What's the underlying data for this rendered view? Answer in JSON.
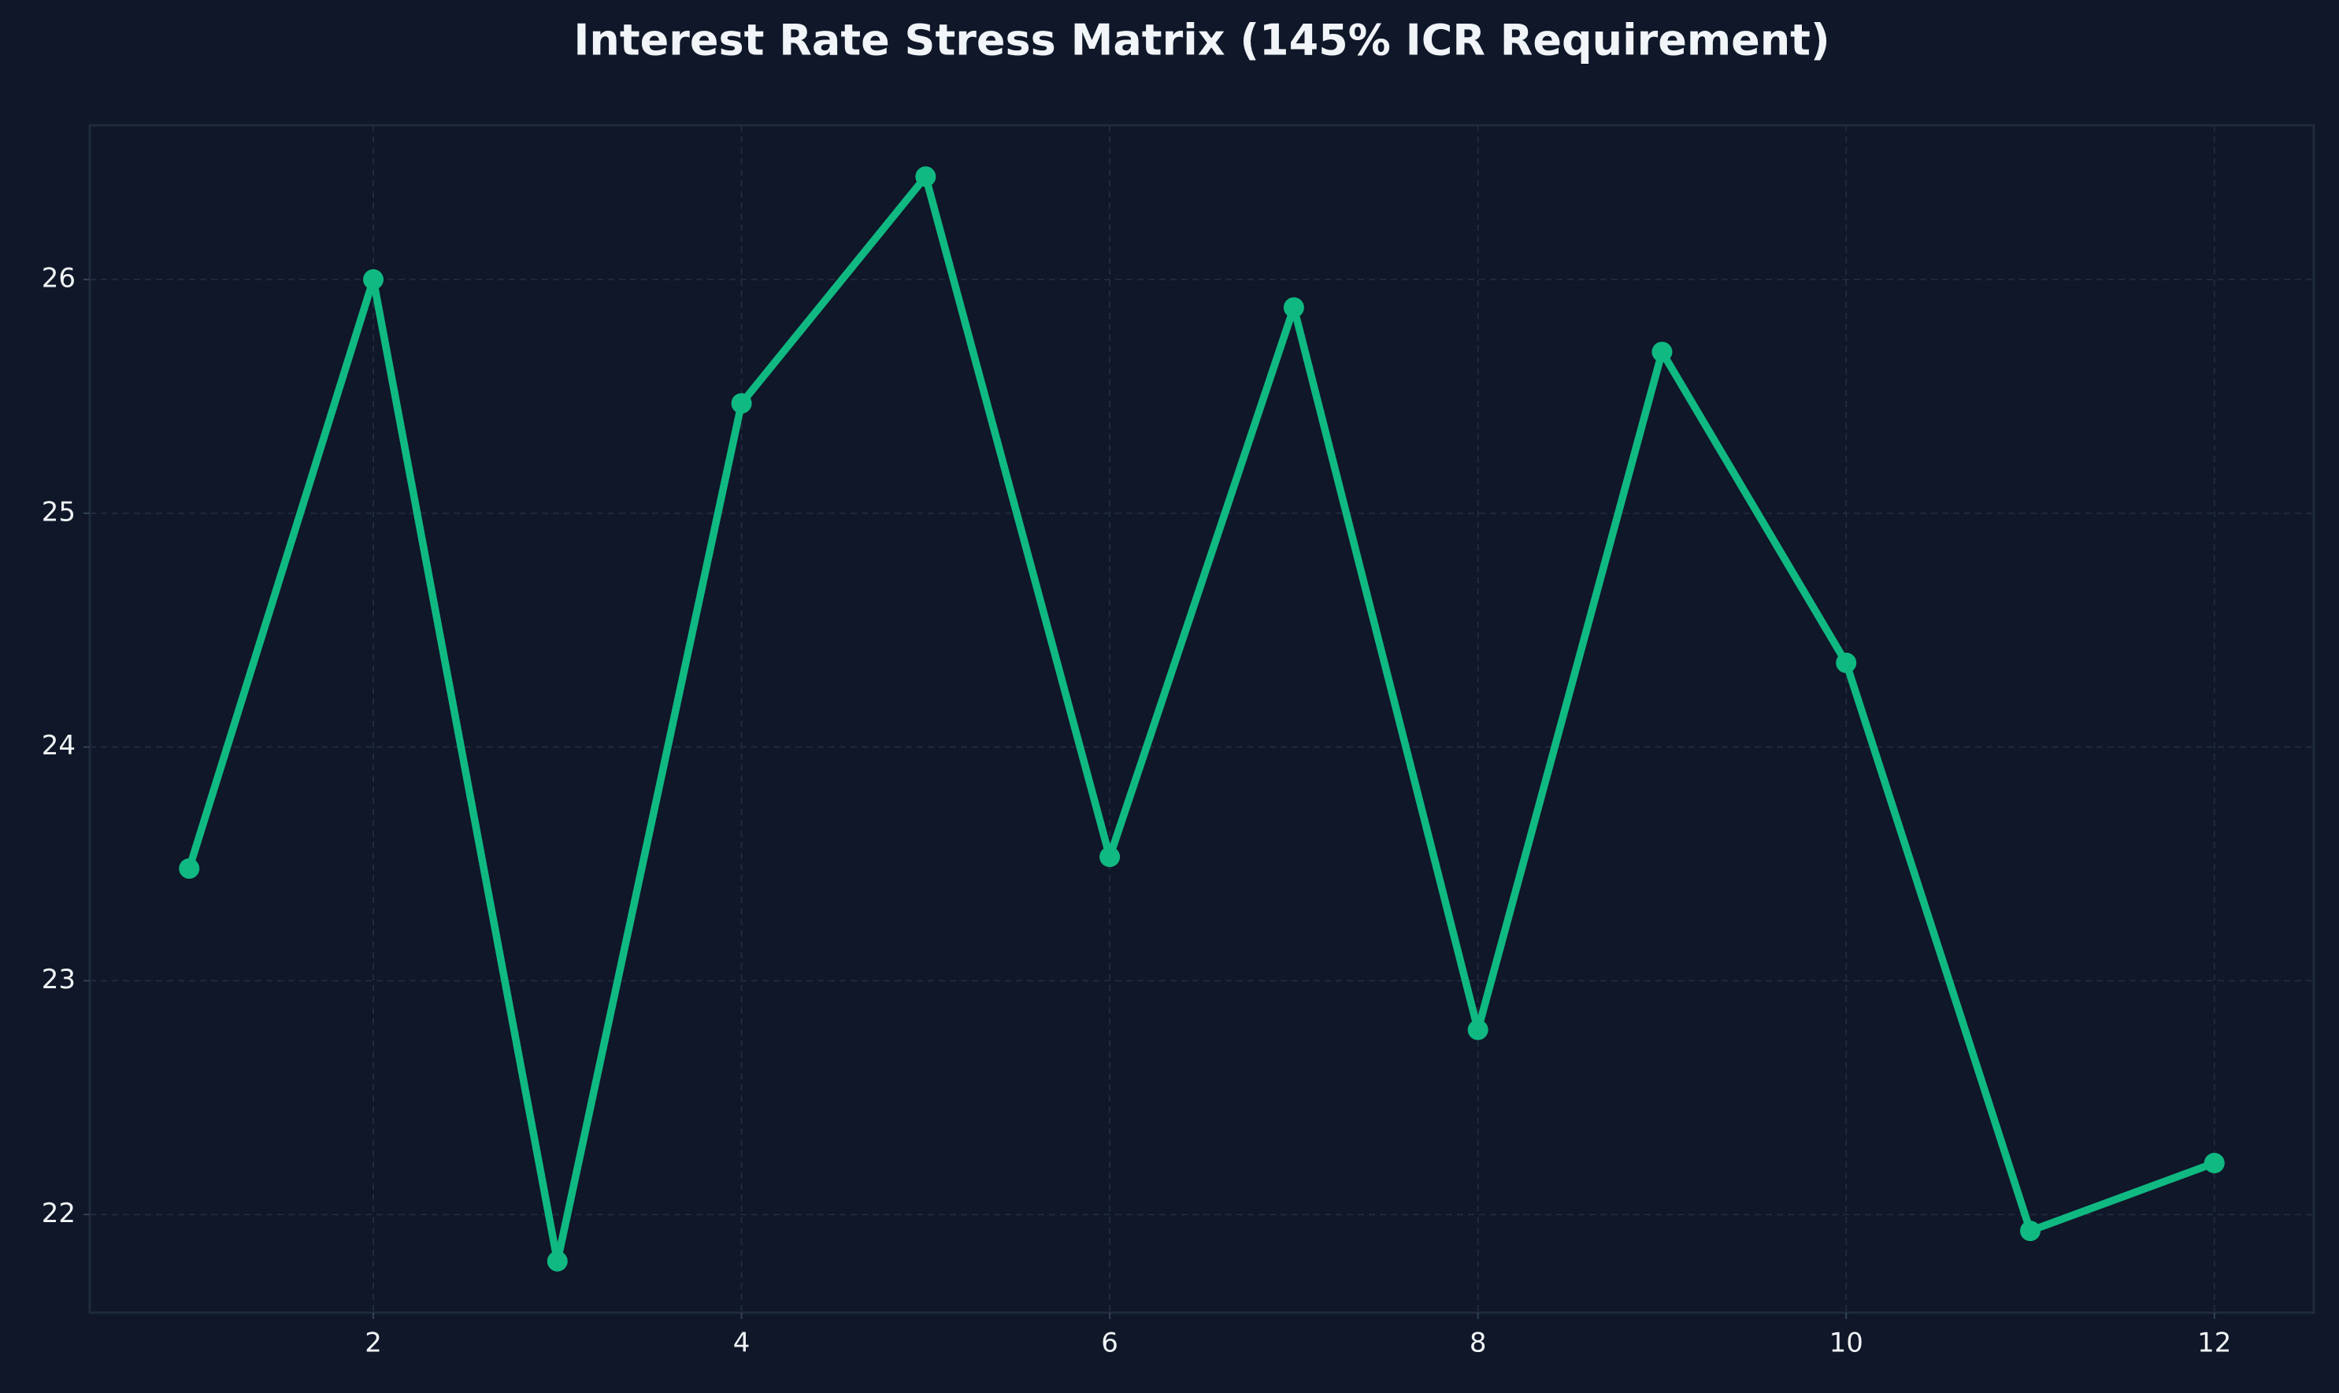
{
  "chart_data": {
    "type": "line",
    "title": "Interest Rate Stress Matrix (145% ICR Requirement)",
    "x": [
      1,
      2,
      3,
      4,
      5,
      6,
      7,
      8,
      9,
      10,
      11,
      12
    ],
    "series": [
      {
        "color": "#10b981",
        "values": [
          23.48,
          26.0,
          21.8,
          25.47,
          26.44,
          23.53,
          25.88,
          22.79,
          25.69,
          24.36,
          21.93,
          22.22
        ]
      }
    ],
    "xlim": [
      0.46,
      12.54
    ],
    "xticks": [
      2,
      4,
      6,
      8,
      10,
      12
    ],
    "ylim": [
      21.58,
      26.66
    ],
    "yticks": [
      22,
      23,
      24,
      25,
      26
    ],
    "grid": true
  }
}
